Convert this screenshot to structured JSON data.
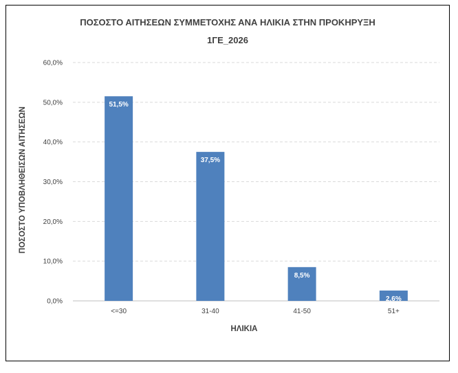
{
  "chart_data": {
    "type": "bar",
    "title": "ΠΟΣΟΣΤΟ ΑΙΤΗΣΕΩΝ ΣΥΜΜΕΤΟΧΗΣ ΑΝΑ ΗΛΙΚΙΑ ΣΤΗΝ ΠΡΟΚΗΡΥΞΗ",
    "subtitle": "1ΓΕ_2026",
    "xlabel": "ΗΛΙΚΙΑ",
    "ylabel": "ΠΟΣΟΣΤΟ ΥΠΟΒΛΗΘΕΙΣΩΝ ΑΙΤΗΣΕΩΝ",
    "categories": [
      "<=30",
      "31-40",
      "41-50",
      "51+"
    ],
    "values": [
      51.5,
      37.5,
      8.5,
      2.6
    ],
    "data_labels": [
      "51,5%",
      "37,5%",
      "8,5%",
      "2,6%"
    ],
    "y_ticks": [
      0,
      10,
      20,
      30,
      40,
      50,
      60
    ],
    "y_tick_labels": [
      "0,0%",
      "10,0%",
      "20,0%",
      "30,0%",
      "40,0%",
      "50,0%",
      "60,0%"
    ],
    "ylim": [
      0,
      60
    ],
    "grid": true,
    "legend": "none",
    "colors": {
      "bar": "#4f81bd",
      "grid": "#d9d9d9",
      "axis": "#bfbfbf",
      "text": "#404040",
      "data_label": "#ffffff"
    }
  }
}
